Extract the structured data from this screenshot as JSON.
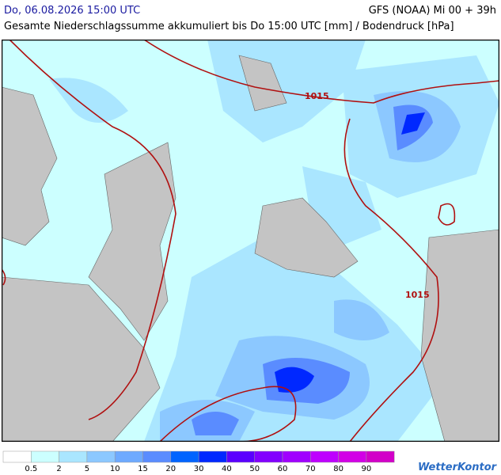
{
  "header": {
    "left_title": "Do, 06.08.2026 15:00 UTC",
    "right_title": "GFS (NOAA) Mi 00 + 39h",
    "subtitle": "Gesamte Niederschlagssumme akkumuliert bis Do 15:00 UTC [mm] / Bodendruck [hPa]"
  },
  "map": {
    "isobar_labels": [
      "1015",
      "1015"
    ]
  },
  "legend": {
    "colors": [
      "#ffffff",
      "#ccffff",
      "#aae6ff",
      "#8cc8ff",
      "#6eaaff",
      "#5a8cff",
      "#0064ff",
      "#0028ff",
      "#5a00ff",
      "#8200ff",
      "#a000ff",
      "#be00ff",
      "#d200e6",
      "#d200c8"
    ],
    "labels": [
      0.5,
      2,
      5,
      10,
      15,
      20,
      30,
      40,
      50,
      60,
      70,
      80,
      90
    ]
  },
  "logo": "WetterKontor"
}
